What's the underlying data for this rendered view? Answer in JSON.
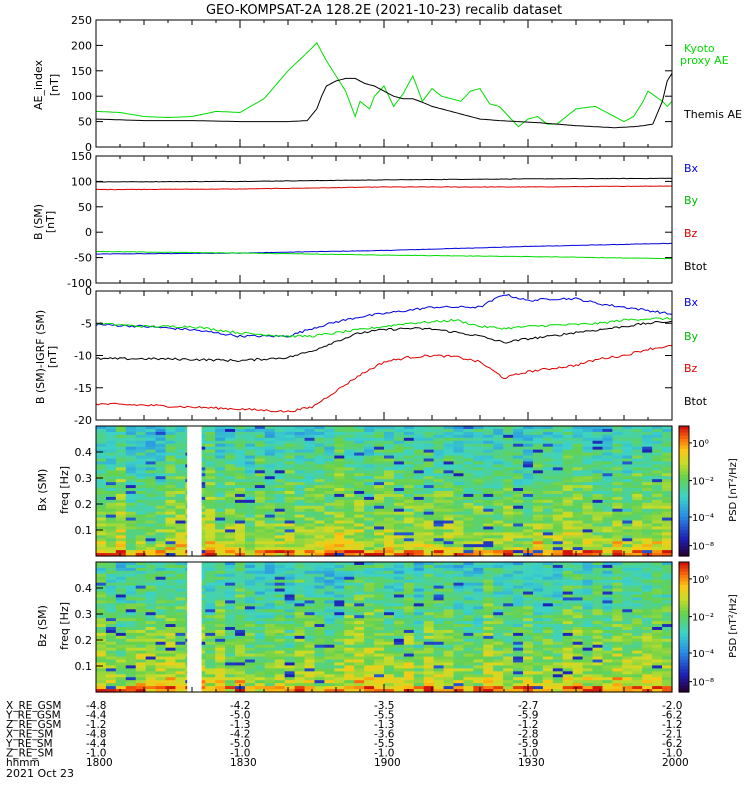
{
  "title": "GEO-KOMPSAT-2A 128.2E (2021-10-23) recalib dataset",
  "colors": {
    "black": "#000000",
    "blue": "#0000dd",
    "green": "#00dd00",
    "red": "#dd0000"
  },
  "chart_data": [
    {
      "id": "ae",
      "type": "line",
      "ylabel": "AE_index [nT]",
      "ylim": [
        0,
        250
      ],
      "yticks": [
        "0",
        "50",
        "100",
        "150",
        "200",
        "250"
      ],
      "xlim": [
        "18:00",
        "20:00"
      ],
      "series": [
        {
          "name": "Kyoto proxy AE",
          "color": "#00dd00",
          "x": [
            0,
            5,
            10,
            15,
            20,
            25,
            30,
            35,
            40,
            45,
            46,
            48,
            50,
            52,
            54,
            55,
            57,
            58,
            60,
            62,
            64,
            66,
            68,
            70,
            72,
            74,
            76,
            78,
            80,
            82,
            84,
            86,
            88,
            90,
            92,
            94,
            96,
            98,
            100,
            104,
            108,
            110,
            112,
            113,
            114,
            115,
            118,
            119,
            120
          ],
          "y": [
            70,
            68,
            60,
            58,
            60,
            70,
            68,
            95,
            150,
            195,
            205,
            170,
            140,
            110,
            60,
            90,
            75,
            100,
            120,
            80,
            105,
            140,
            90,
            115,
            100,
            95,
            90,
            110,
            115,
            85,
            80,
            60,
            40,
            55,
            60,
            45,
            45,
            60,
            75,
            80,
            60,
            50,
            60,
            75,
            90,
            110,
            90,
            80,
            90
          ]
        },
        {
          "name": "Themis AE",
          "color": "#000000",
          "x": [
            0,
            10,
            20,
            30,
            40,
            44,
            46,
            47,
            48,
            50,
            52,
            54,
            56,
            58,
            60,
            62,
            64,
            66,
            68,
            70,
            72,
            74,
            76,
            80,
            84,
            88,
            92,
            96,
            100,
            104,
            108,
            112,
            114,
            116,
            118,
            119,
            120
          ],
          "y": [
            55,
            52,
            52,
            50,
            50,
            52,
            75,
            100,
            120,
            130,
            135,
            135,
            125,
            120,
            110,
            100,
            95,
            95,
            88,
            80,
            75,
            70,
            65,
            55,
            52,
            50,
            48,
            45,
            42,
            40,
            38,
            40,
            42,
            45,
            90,
            130,
            145
          ]
        }
      ]
    },
    {
      "id": "b_sm",
      "type": "line",
      "ylabel": "B (SM) [nT]",
      "ylim": [
        -100,
        150
      ],
      "yticks": [
        "-100",
        "-50",
        "0",
        "50",
        "100",
        "150"
      ],
      "xlim": [
        "18:00",
        "20:00"
      ],
      "series": [
        {
          "name": "Bx",
          "color": "#0000dd",
          "x": [
            0,
            30,
            60,
            90,
            120
          ],
          "y": [
            -43,
            -41,
            -36,
            -28,
            -22
          ]
        },
        {
          "name": "By",
          "color": "#00dd00",
          "x": [
            0,
            30,
            60,
            90,
            120
          ],
          "y": [
            -38,
            -41,
            -45,
            -48,
            -52
          ]
        },
        {
          "name": "Bz",
          "color": "#dd0000",
          "x": [
            0,
            30,
            60,
            90,
            120
          ],
          "y": [
            84,
            85,
            89,
            89,
            91
          ]
        },
        {
          "name": "Btot",
          "color": "#000000",
          "x": [
            0,
            30,
            60,
            90,
            120
          ],
          "y": [
            99,
            100,
            103,
            105,
            106
          ]
        }
      ]
    },
    {
      "id": "b_igrf",
      "type": "line",
      "ylabel": "B (SM)-IGRF (SM) [nT]",
      "ylim": [
        -20,
        0
      ],
      "yticks": [
        "-20",
        "-15",
        "-10",
        "-5",
        "0"
      ],
      "xlim": [
        "18:00",
        "20:00"
      ],
      "series": [
        {
          "name": "Bx",
          "color": "#0000dd",
          "x": [
            0,
            10,
            20,
            30,
            40,
            45,
            50,
            55,
            60,
            65,
            70,
            75,
            80,
            85,
            90,
            95,
            100,
            105,
            110,
            115,
            120
          ],
          "y": [
            -5.2,
            -5.5,
            -6,
            -7,
            -7,
            -5.8,
            -4.8,
            -4,
            -3.5,
            -3,
            -2.5,
            -2.5,
            -2.5,
            -0.5,
            -1.5,
            -1.2,
            -1.2,
            -2,
            -2.5,
            -3,
            -3.6
          ]
        },
        {
          "name": "By",
          "color": "#00dd00",
          "x": [
            0,
            10,
            20,
            30,
            40,
            45,
            50,
            55,
            60,
            65,
            70,
            75,
            80,
            85,
            90,
            95,
            100,
            105,
            110,
            115,
            120
          ],
          "y": [
            -5,
            -5.5,
            -5.5,
            -6.5,
            -7,
            -7,
            -6.5,
            -6,
            -5.5,
            -5,
            -4.8,
            -4.5,
            -5.5,
            -5.8,
            -5.5,
            -5.3,
            -5.2,
            -5,
            -4.5,
            -4.3,
            -4.3
          ]
        },
        {
          "name": "Bz",
          "color": "#dd0000",
          "x": [
            0,
            10,
            20,
            30,
            40,
            45,
            50,
            55,
            60,
            65,
            70,
            75,
            80,
            85,
            90,
            95,
            100,
            105,
            110,
            115,
            120
          ],
          "y": [
            -17.5,
            -17.7,
            -18,
            -18.3,
            -18.7,
            -18,
            -15.5,
            -13,
            -11,
            -10.3,
            -10,
            -10.2,
            -11,
            -13.5,
            -12.5,
            -12,
            -11.5,
            -10.5,
            -10,
            -9,
            -8.5
          ]
        },
        {
          "name": "Btot",
          "color": "#000000",
          "x": [
            0,
            10,
            20,
            30,
            40,
            45,
            50,
            55,
            60,
            65,
            70,
            75,
            80,
            85,
            90,
            95,
            100,
            105,
            110,
            115,
            120
          ],
          "y": [
            -10.5,
            -10.5,
            -10.6,
            -10.8,
            -10.3,
            -9.3,
            -7.8,
            -6.5,
            -6,
            -5.8,
            -5.9,
            -6.4,
            -7,
            -8,
            -7.4,
            -7,
            -6.4,
            -6,
            -5.5,
            -5,
            -4.7
          ]
        }
      ]
    },
    {
      "id": "bx_spec",
      "type": "heatmap",
      "ylabel": "Bx (SM) freq [Hz]",
      "yticks": [
        "0.1",
        "0.2",
        "0.3",
        "0.4"
      ],
      "colorbar_label": "PSD [nT²/Hz]",
      "colorbar_ticks": [
        "10⁰",
        "10⁻²",
        "10⁻⁴",
        "10⁻⁸"
      ],
      "gap": [
        "18:19",
        "18:22"
      ]
    },
    {
      "id": "bz_spec",
      "type": "heatmap",
      "ylabel": "Bz (SM) freq [Hz]",
      "yticks": [
        "0.1",
        "0.2",
        "0.3",
        "0.4"
      ],
      "colorbar_label": "PSD [nT²/Hz]",
      "colorbar_ticks": [
        "10⁰",
        "10⁻²",
        "10⁻⁴",
        "10⁻⁸"
      ],
      "gap": [
        "18:19",
        "18:22"
      ]
    }
  ],
  "orbit_table": {
    "labels": [
      "X_RE_GSM",
      "Y_RE_GSM",
      "Z_RE_GSM",
      "X_RE_SM",
      "Y_RE_SM",
      "Z_RE_SM",
      "hhmm"
    ],
    "columns": [
      [
        "-4.8",
        "-4.4",
        "-1.2",
        "-4.8",
        "-4.4",
        "-1.0",
        "1800"
      ],
      [
        "-4.2",
        "-5.0",
        "-1.3",
        "-4.2",
        "-5.0",
        "-1.0",
        "1830"
      ],
      [
        "-3.5",
        "-5.5",
        "-1.3",
        "-3.6",
        "-5.5",
        "-1.0",
        "1900"
      ],
      [
        "-2.7",
        "-5.9",
        "-1.2",
        "-2.8",
        "-5.9",
        "-1.0",
        "1930"
      ],
      [
        "-2.0",
        "-6.2",
        "-1.2",
        "-2.1",
        "-6.2",
        "-1.0",
        "2000"
      ]
    ],
    "date": "2021 Oct 23"
  }
}
